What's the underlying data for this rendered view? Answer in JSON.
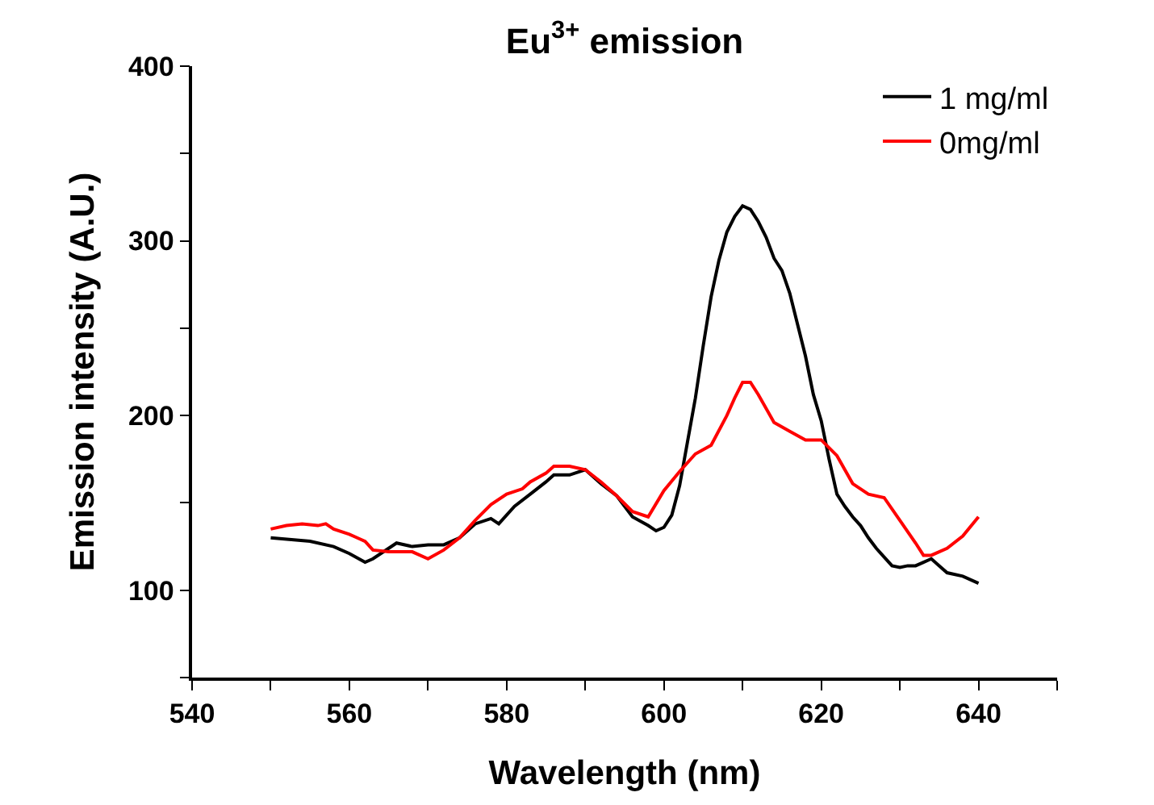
{
  "chart_data": {
    "type": "line",
    "title": "Eu$^{3+}$ emission",
    "xlabel": "Wavelength (nm)",
    "ylabel": "Emission intensity (A.U.)",
    "xlim": [
      540,
      650
    ],
    "xticks": [
      540,
      {
        "value": 550,
        "label": null
      },
      560,
      {
        "value": 570,
        "label": null
      },
      580,
      {
        "value": 590,
        "label": null
      },
      600,
      {
        "value": 610,
        "label": null
      },
      620,
      {
        "value": 630,
        "label": null
      },
      640,
      {
        "value": 650,
        "label": null
      }
    ],
    "ylim": [
      50,
      400
    ],
    "yticks": [
      {
        "value": 50,
        "label": null
      },
      100,
      {
        "value": 150,
        "label": null
      },
      200,
      {
        "value": 250,
        "label": null
      },
      300,
      {
        "value": 350,
        "label": null
      },
      400
    ],
    "grid": false,
    "legend": "top right",
    "line_style": "solid",
    "marker": "none",
    "series": [
      {
        "name": "1 mg/ml",
        "color": "#000000",
        "x": [
          550,
          555,
          558,
          560,
          562,
          563,
          565,
          566,
          568,
          570,
          572,
          574,
          576,
          578,
          579,
          581,
          583,
          585,
          586,
          588,
          590,
          592,
          594,
          596,
          598,
          599,
          600,
          601,
          602,
          603,
          604,
          605,
          606,
          607,
          608,
          609,
          610,
          611,
          612,
          613,
          614,
          615,
          616,
          617,
          618,
          619,
          620,
          621,
          622,
          623,
          624,
          625,
          626,
          627,
          628,
          629,
          630,
          631,
          632,
          633,
          634,
          635,
          636,
          638,
          640
        ],
        "values": [
          130,
          128,
          125,
          121,
          116,
          118,
          124,
          127,
          125,
          126,
          126,
          130,
          138,
          141,
          138,
          148,
          155,
          162,
          166,
          166,
          169,
          161,
          154,
          142,
          137,
          134,
          136,
          143,
          160,
          185,
          210,
          240,
          268,
          289,
          305,
          314,
          320,
          318,
          311,
          302,
          290,
          283,
          270,
          252,
          234,
          212,
          197,
          175,
          155,
          148,
          142,
          137,
          130,
          124,
          119,
          114,
          113,
          114,
          114,
          116,
          118,
          114,
          110,
          108,
          104
        ]
      },
      {
        "name": "0mg/ml",
        "color": "#ff0000",
        "x": [
          550,
          552,
          554,
          556,
          557,
          558,
          560,
          561,
          562,
          563,
          565,
          567,
          568,
          570,
          572,
          574,
          576,
          578,
          580,
          582,
          583,
          585,
          586,
          588,
          590,
          592,
          594,
          596,
          598,
          600,
          602,
          604,
          606,
          608,
          609,
          610,
          611,
          612,
          614,
          616,
          618,
          620,
          622,
          624,
          626,
          628,
          630,
          632,
          633,
          634,
          636,
          638,
          640
        ],
        "values": [
          135,
          137,
          138,
          137,
          138,
          135,
          132,
          130,
          128,
          123,
          122,
          122,
          122,
          118,
          123,
          130,
          140,
          149,
          155,
          158,
          162,
          167,
          171,
          171,
          169,
          162,
          154,
          145,
          142,
          157,
          168,
          178,
          183,
          200,
          210,
          219,
          219,
          212,
          196,
          191,
          186,
          186,
          177,
          161,
          155,
          153,
          140,
          127,
          120,
          120,
          124,
          131,
          142
        ]
      }
    ]
  }
}
